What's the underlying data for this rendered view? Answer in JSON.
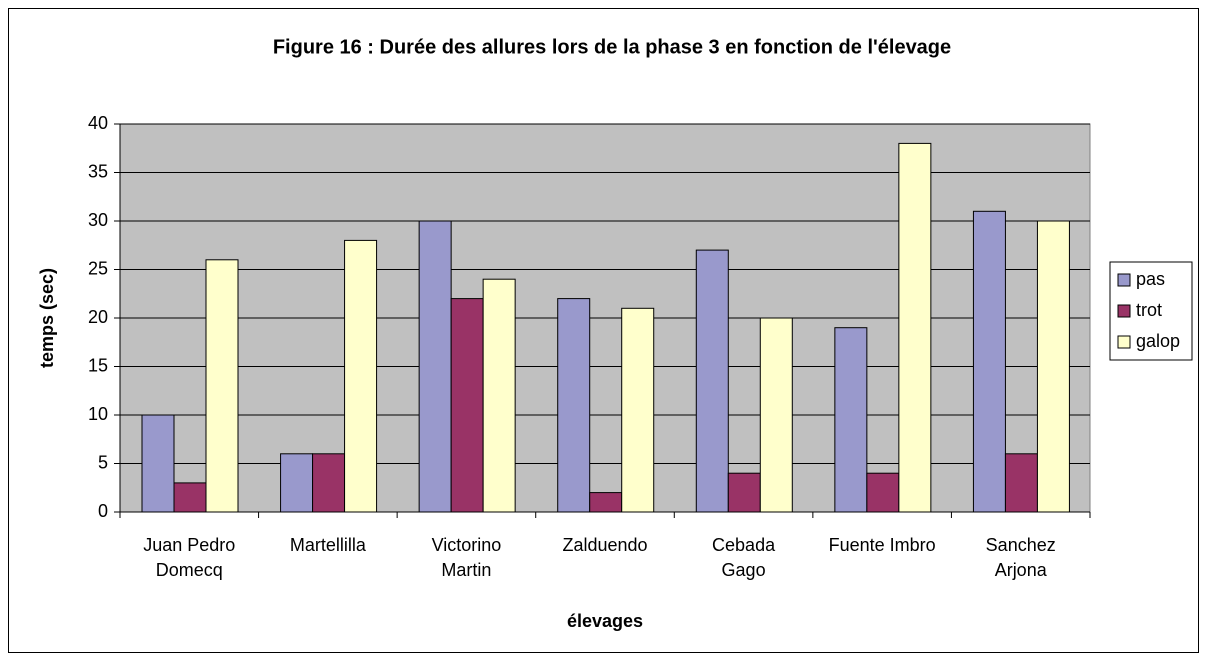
{
  "chart_data": {
    "type": "bar",
    "title": "Figure 16 : Durée des allures lors de la phase 3 en fonction de l'élevage",
    "xlabel": "élevages",
    "ylabel": "temps (sec)",
    "categories": [
      [
        "Juan Pedro",
        "Domecq"
      ],
      [
        "Martellilla"
      ],
      [
        "Victorino",
        "Martin"
      ],
      [
        "Zalduendo"
      ],
      [
        "Cebada",
        "Gago"
      ],
      [
        "Fuente Imbro"
      ],
      [
        "Sanchez",
        "Arjona"
      ]
    ],
    "series": [
      {
        "name": "pas",
        "color": "#9999cc",
        "values": [
          10,
          6,
          30,
          22,
          27,
          19,
          31
        ]
      },
      {
        "name": "trot",
        "color": "#993366",
        "values": [
          3,
          6,
          22,
          2,
          4,
          4,
          6
        ]
      },
      {
        "name": "galop",
        "color": "#ffffcc",
        "values": [
          26,
          28,
          24,
          21,
          20,
          38,
          30
        ]
      }
    ],
    "ylim": [
      0,
      40
    ],
    "yticks": [
      0,
      5,
      10,
      15,
      20,
      25,
      30,
      35,
      40
    ],
    "grid": true,
    "legend": "right",
    "plot_background": "#c0c0c0"
  }
}
